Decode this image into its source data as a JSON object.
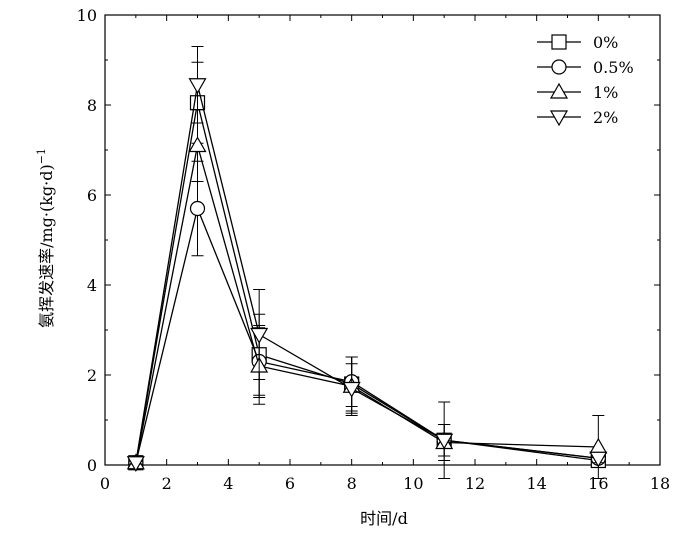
{
  "chart_data": {
    "type": "line",
    "title": "",
    "xlabel": "时间/d",
    "ylabel": "氨挥发速率/mg·(kg·d)",
    "ylabel_sup": "−1",
    "xlim": [
      0,
      18
    ],
    "ylim": [
      0,
      10
    ],
    "xticks": [
      0,
      2,
      4,
      6,
      8,
      10,
      12,
      14,
      16,
      18
    ],
    "yticks": [
      0,
      2,
      4,
      6,
      8,
      10
    ],
    "grid": false,
    "legend_position": "top-right",
    "x": [
      1,
      3,
      5,
      8,
      11,
      16
    ],
    "series": [
      {
        "name": "0%",
        "marker": "square",
        "values": [
          0.05,
          8.05,
          2.45,
          1.8,
          0.55,
          0.1
        ],
        "errors": [
          0.03,
          0.9,
          0.9,
          0.6,
          0.35,
          0.08
        ]
      },
      {
        "name": "0.5%",
        "marker": "circle",
        "values": [
          0.05,
          5.7,
          2.3,
          1.85,
          0.55,
          0.15
        ],
        "errors": [
          0.03,
          1.05,
          0.8,
          0.55,
          0.35,
          0.1
        ]
      },
      {
        "name": "1%",
        "marker": "triangle-up",
        "values": [
          0.05,
          7.1,
          2.2,
          1.75,
          0.5,
          0.4
        ],
        "errors": [
          0.03,
          0.8,
          0.85,
          0.65,
          0.4,
          0.7
        ]
      },
      {
        "name": "2%",
        "marker": "triangle-down",
        "values": [
          0.05,
          8.45,
          2.9,
          1.7,
          0.55,
          0.15
        ],
        "errors": [
          0.03,
          0.85,
          1.0,
          0.55,
          0.85,
          0.1
        ]
      }
    ]
  }
}
